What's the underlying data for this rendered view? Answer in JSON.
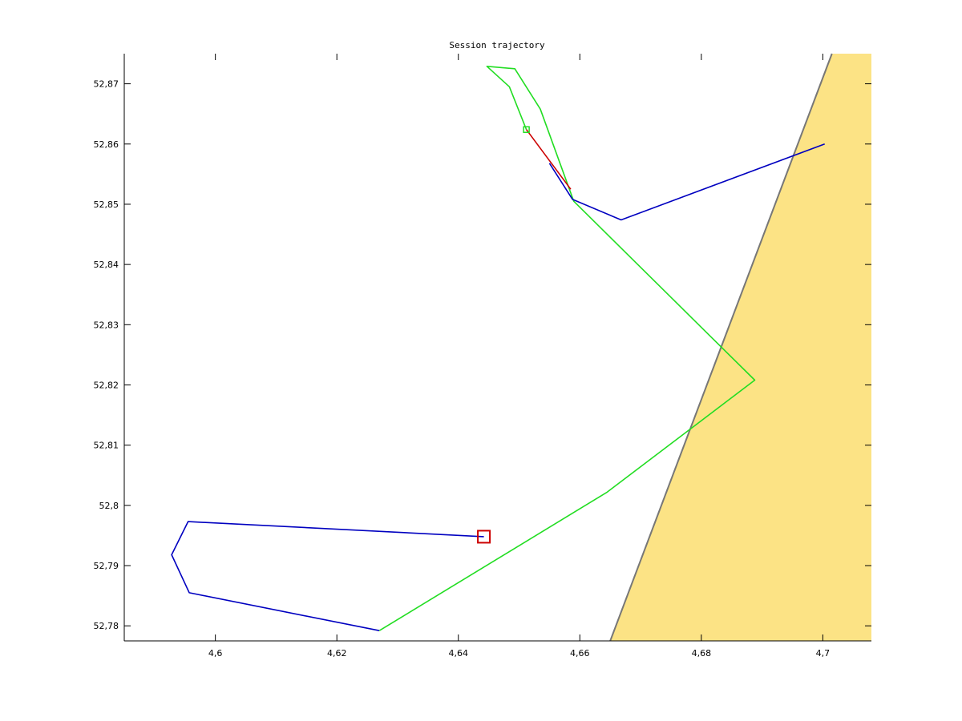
{
  "chart_data": {
    "type": "line",
    "title": "Session trajectory",
    "xlabel": "",
    "ylabel": "",
    "xlim": [
      4.585,
      4.708
    ],
    "ylim": [
      52.7775,
      52.875
    ],
    "x_ticks": [
      4.6,
      4.62,
      4.64,
      4.66,
      4.68,
      4.7
    ],
    "x_tick_labels": [
      "4,6",
      "4,62",
      "4,64",
      "4,66",
      "4,68",
      "4,7"
    ],
    "y_ticks": [
      52.78,
      52.79,
      52.8,
      52.81,
      52.82,
      52.83,
      52.84,
      52.85,
      52.86,
      52.87
    ],
    "y_tick_labels": [
      "52,78",
      "52,79",
      "52,8",
      "52,81",
      "52,82",
      "52,83",
      "52,84",
      "52,85",
      "52,86",
      "52,87"
    ],
    "grid": false,
    "colors": {
      "blue": "#0000c0",
      "green": "#22dd22",
      "red": "#cc0000",
      "land": "#fce385",
      "coastline": "#777777"
    },
    "land": {
      "coastline": [
        {
          "x": 4.665,
          "y": 52.7775
        },
        {
          "x": 4.7015,
          "y": 52.875
        }
      ],
      "fill_side": "right"
    },
    "series": [
      {
        "color": "#0000c0",
        "x": [
          4.6442,
          4.5955,
          4.5928,
          4.5957,
          4.627
        ],
        "y": [
          52.7948,
          52.7973,
          52.7918,
          52.7855,
          52.7792
        ]
      },
      {
        "color": "#22dd22",
        "x": [
          4.627,
          4.6645,
          4.6888,
          4.659,
          4.6535,
          4.6493,
          4.6447,
          4.6484,
          4.6512
        ],
        "y": [
          52.7792,
          52.8022,
          52.8208,
          52.8505,
          52.8658,
          52.8725,
          52.8729,
          52.8695,
          52.8624
        ]
      },
      {
        "color": "#cc0000",
        "x": [
          4.6512,
          4.6585
        ],
        "y": [
          52.8624,
          52.8525
        ]
      },
      {
        "color": "#0000c0",
        "x": [
          4.655,
          4.6588,
          4.6668,
          4.7003
        ],
        "y": [
          52.8568,
          52.8508,
          52.8474,
          52.86
        ]
      }
    ],
    "markers": [
      {
        "shape": "square",
        "size": "large",
        "color": "#cc0000",
        "x": 4.6442,
        "y": 52.7948
      },
      {
        "shape": "square",
        "size": "small",
        "color": "#22dd22",
        "x": 4.6512,
        "y": 52.8624
      }
    ]
  }
}
